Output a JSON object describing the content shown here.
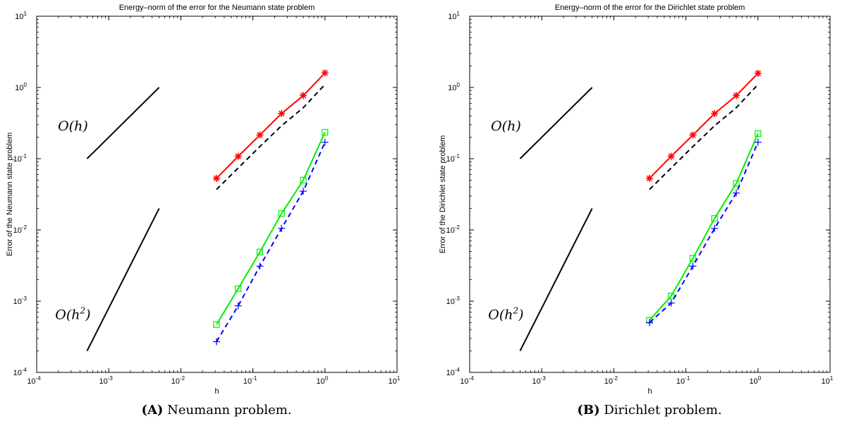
{
  "chart_data": [
    {
      "type": "line",
      "log_scale": {
        "x": true,
        "y": true
      },
      "title": "Energy–norm of the error for the Neumann state problem",
      "xlabel": "h",
      "ylabel": "Error of the Neumann state problem",
      "xlim": [
        0.0001,
        10
      ],
      "ylim": [
        0.0001,
        10
      ],
      "x_ticks": [
        "10-4",
        "10-3",
        "10-2",
        "10-1",
        "100",
        "101"
      ],
      "y_ticks": [
        "10-4",
        "10-3",
        "10-2",
        "10-1",
        "100",
        "101"
      ],
      "caption_label": "(A)",
      "caption_text": " Neumann problem.",
      "series": [
        {
          "color": "#ff0000",
          "dash": false,
          "marker": "asterisk",
          "x": [
            0.03125,
            0.0625,
            0.125,
            0.25,
            0.5,
            1.0
          ],
          "y": [
            0.053,
            0.108,
            0.215,
            0.43,
            0.77,
            1.6
          ]
        },
        {
          "color": "#000000",
          "dash": true,
          "marker": "none",
          "x": [
            0.03125,
            0.0625,
            0.125,
            0.25,
            0.5,
            1.0
          ],
          "y": [
            0.037,
            0.074,
            0.148,
            0.29,
            0.52,
            1.1
          ]
        },
        {
          "color": "#00ee00",
          "dash": false,
          "marker": "square",
          "x": [
            0.03125,
            0.0625,
            0.125,
            0.25,
            0.5,
            1.0
          ],
          "y": [
            0.00047,
            0.0015,
            0.0049,
            0.017,
            0.05,
            0.235
          ]
        },
        {
          "color": "#0000ff",
          "dash": true,
          "marker": "plus",
          "x": [
            0.03125,
            0.0625,
            0.125,
            0.25,
            0.5,
            1.0
          ],
          "y": [
            0.00027,
            0.00086,
            0.0031,
            0.0105,
            0.035,
            0.17
          ]
        }
      ],
      "reference_lines": [
        {
          "label": "O(h)",
          "x": [
            0.0005,
            0.005
          ],
          "y": [
            0.1,
            1.0
          ]
        },
        {
          "label": "O(h2)",
          "x": [
            0.0005,
            0.005
          ],
          "y": [
            0.0002,
            0.02
          ]
        }
      ]
    },
    {
      "type": "line",
      "log_scale": {
        "x": true,
        "y": true
      },
      "title": "Energy–norm of the error for the Dirichlet state problem",
      "xlabel": "h",
      "ylabel": "Error of the Dirichlet state problem",
      "xlim": [
        0.0001,
        10
      ],
      "ylim": [
        0.0001,
        10
      ],
      "x_ticks": [
        "10-4",
        "10-3",
        "10-2",
        "10-1",
        "100",
        "101"
      ],
      "y_ticks": [
        "10-4",
        "10-3",
        "10-2",
        "10-1",
        "100",
        "101"
      ],
      "caption_label": "(B)",
      "caption_text": " Dirichlet problem.",
      "series": [
        {
          "color": "#ff0000",
          "dash": false,
          "marker": "asterisk",
          "x": [
            0.03125,
            0.0625,
            0.125,
            0.25,
            0.5,
            1.0
          ],
          "y": [
            0.053,
            0.108,
            0.215,
            0.43,
            0.77,
            1.58
          ]
        },
        {
          "color": "#000000",
          "dash": true,
          "marker": "none",
          "x": [
            0.03125,
            0.0625,
            0.125,
            0.25,
            0.5,
            1.0
          ],
          "y": [
            0.037,
            0.074,
            0.148,
            0.29,
            0.52,
            1.1
          ]
        },
        {
          "color": "#00ee00",
          "dash": false,
          "marker": "square",
          "x": [
            0.03125,
            0.0625,
            0.125,
            0.25,
            0.5,
            1.0
          ],
          "y": [
            0.00054,
            0.00118,
            0.004,
            0.0145,
            0.045,
            0.225
          ]
        },
        {
          "color": "#0000ff",
          "dash": true,
          "marker": "plus",
          "x": [
            0.03125,
            0.0625,
            0.125,
            0.25,
            0.5,
            1.0
          ],
          "y": [
            0.0005,
            0.00094,
            0.0031,
            0.0105,
            0.033,
            0.17
          ]
        }
      ],
      "reference_lines": [
        {
          "label": "O(h)",
          "x": [
            0.0005,
            0.005
          ],
          "y": [
            0.1,
            1.0
          ]
        },
        {
          "label": "O(h2)",
          "x": [
            0.0005,
            0.005
          ],
          "y": [
            0.0002,
            0.02
          ]
        }
      ]
    }
  ]
}
